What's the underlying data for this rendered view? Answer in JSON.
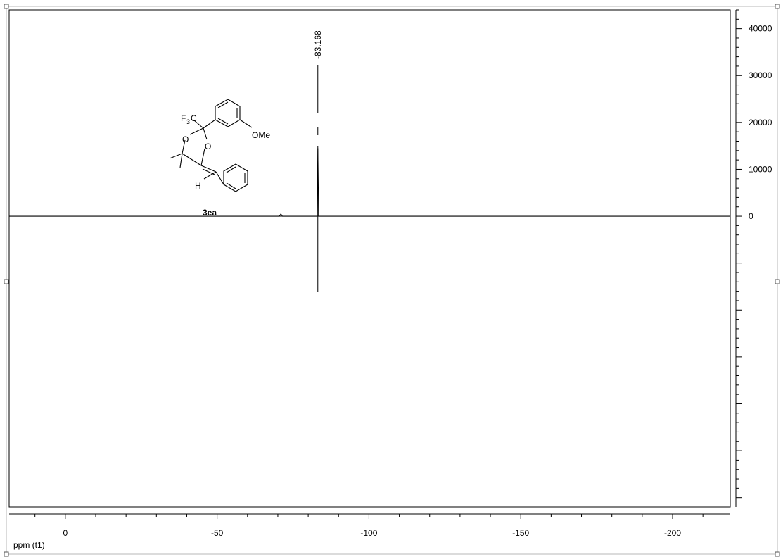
{
  "chart_data": {
    "type": "line",
    "title": "",
    "xlabel": "ppm (t1)",
    "ylabel": "",
    "x_reversed": true,
    "xlim": [
      18.5,
      -219
    ],
    "ylim": [
      -62000,
      44000
    ],
    "x_ticks": [
      0,
      -50,
      -100,
      -150,
      -200
    ],
    "x_tick_labels": [
      "0",
      "-50",
      "-100",
      "-150",
      "-200"
    ],
    "y_ticks": [
      0,
      10000,
      20000,
      30000,
      40000
    ],
    "y_tick_labels": [
      "0",
      "10000",
      "20000",
      "30000",
      "40000"
    ],
    "series": [
      {
        "x": [
          18.5,
          -70.5,
          -71.0,
          -71.5,
          -82.9,
          -83.168,
          -83.45,
          -219
        ],
        "y": [
          0,
          0,
          500,
          0,
          0,
          14500,
          0,
          0
        ]
      }
    ],
    "peak_labels": [
      {
        "x": -83.168,
        "text": "-83.168"
      }
    ],
    "grid": false,
    "legend": "none",
    "line_color": "#000000"
  },
  "structure": {
    "compound_label": "3ea",
    "atoms": {
      "f3c": "F",
      "f3c_sub": "3",
      "f3c_c": "C",
      "o1": "O",
      "o2": "O",
      "ome": "OMe",
      "h": "H"
    }
  }
}
